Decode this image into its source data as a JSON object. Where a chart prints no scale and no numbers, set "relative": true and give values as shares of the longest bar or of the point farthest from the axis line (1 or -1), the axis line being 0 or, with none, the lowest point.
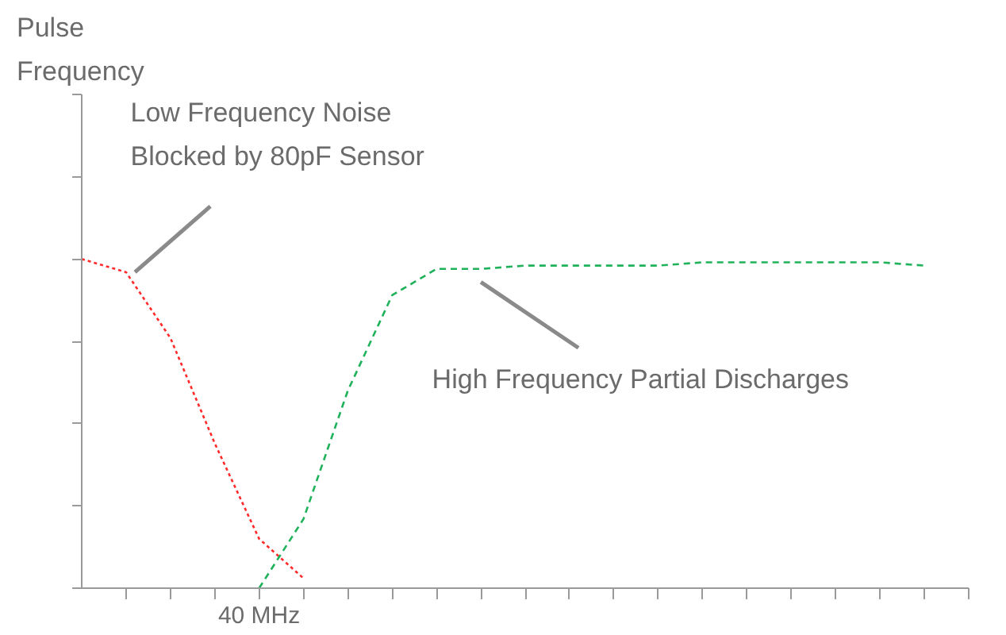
{
  "chart_data": {
    "type": "line",
    "relative": true,
    "categories": [
      null,
      null,
      null,
      null,
      null,
      null,
      null,
      null,
      null,
      null,
      null,
      null,
      null,
      null,
      null,
      null,
      null,
      null,
      null,
      null,
      null
    ],
    "series": [
      {
        "color": "#ff2a2a",
        "line_style": "dotted",
        "values": [
          1,
          0.96,
          0.76,
          0.44,
          0.15,
          0.03,
          null,
          null,
          null,
          null,
          null,
          null,
          null,
          null,
          null,
          null,
          null,
          null,
          null,
          null,
          null
        ]
      },
      {
        "color": "#1fb25a",
        "line_style": "dashed",
        "values": [
          null,
          null,
          null,
          null,
          0,
          0.21,
          0.6,
          0.89,
          0.97,
          0.97,
          0.98,
          0.98,
          0.98,
          0.98,
          0.99,
          0.99,
          0.99,
          0.99,
          0.99,
          0.98,
          null
        ]
      }
    ],
    "annotations": [
      "Pulse\nFrequency",
      "Low Frequency Noise\nBlocked by 80pF Sensor",
      "High Frequency Partial Discharges",
      "40 MHz"
    ]
  }
}
